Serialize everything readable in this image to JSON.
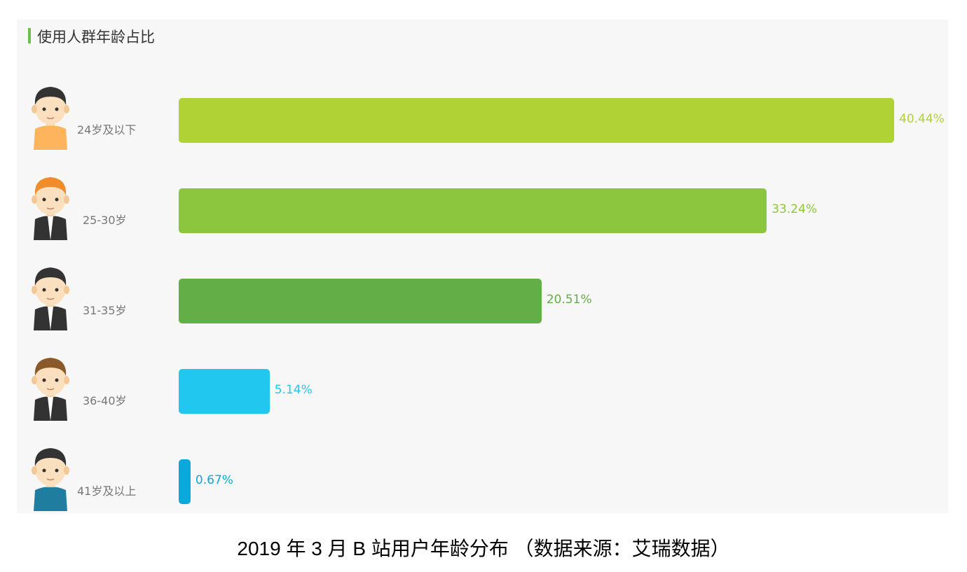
{
  "chart_data": {
    "type": "bar",
    "orientation": "horizontal",
    "title": "使用人群年龄占比",
    "categories": [
      "24岁及以下",
      "25-30岁",
      "31-35岁",
      "36-40岁",
      "41岁及以上"
    ],
    "values": [
      40.44,
      33.24,
      20.51,
      5.14,
      0.67
    ],
    "value_labels": [
      "40.44%",
      "33.24%",
      "20.51%",
      "5.14%",
      "0.67%"
    ],
    "unit": "%",
    "colors": [
      "#b1d235",
      "#8cc63f",
      "#63ae46",
      "#22c7f0",
      "#0aa9dc"
    ],
    "avatar_shirt_colors": [
      "#fdb45c",
      "#333333",
      "#333333",
      "#333333",
      "#1f7ea0"
    ],
    "avatar_hair_colors": [
      "#333333",
      "#f08c2a",
      "#333333",
      "#8a5a2b",
      "#333333"
    ],
    "grid": false,
    "axes_visible": false
  },
  "caption": "2019 年 3 月  B 站用户年龄分布 （数据来源：艾瑞数据）"
}
